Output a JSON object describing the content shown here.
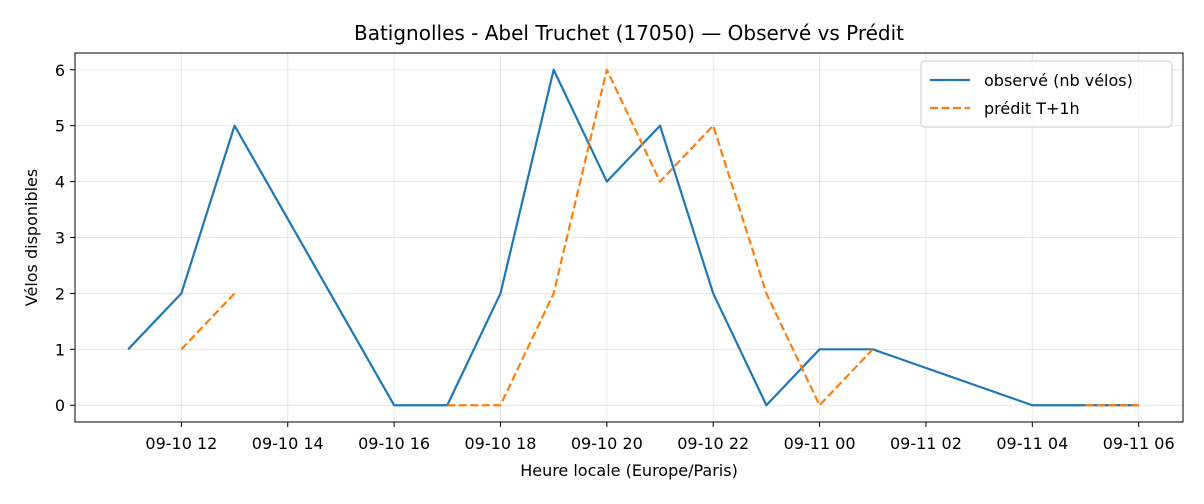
{
  "chart_data": {
    "type": "line",
    "title": "Batignolles - Abel Truchet (17050) — Observé vs Prédit",
    "xlabel": "Heure locale (Europe/Paris)",
    "ylabel": "Vélos disponibles",
    "x_ticks": [
      "09-10 12",
      "09-10 14",
      "09-10 16",
      "09-10 18",
      "09-10 20",
      "09-10 22",
      "09-11 00",
      "09-11 02",
      "09-11 04",
      "09-11 06"
    ],
    "y_ticks": [
      "0",
      "1",
      "2",
      "3",
      "4",
      "5",
      "6"
    ],
    "xlim": [
      "09-10 10:00",
      "09-11 06:50"
    ],
    "ylim": [
      -0.3,
      6.3
    ],
    "grid": true,
    "legend_position": "top-right",
    "series": [
      {
        "name": "observé (nb vélos)",
        "color": "#1f77b4",
        "style": "solid",
        "points": [
          {
            "x": "09-10 11:00",
            "y": 1
          },
          {
            "x": "09-10 12:00",
            "y": 2
          },
          {
            "x": "09-10 13:00",
            "y": 5
          },
          {
            "x": "09-10 16:00",
            "y": 0
          },
          {
            "x": "09-10 17:00",
            "y": 0
          },
          {
            "x": "09-10 18:00",
            "y": 2
          },
          {
            "x": "09-10 19:00",
            "y": 6
          },
          {
            "x": "09-10 20:00",
            "y": 4
          },
          {
            "x": "09-10 21:00",
            "y": 5
          },
          {
            "x": "09-10 22:00",
            "y": 2
          },
          {
            "x": "09-10 23:00",
            "y": 0
          },
          {
            "x": "09-11 00:00",
            "y": 1
          },
          {
            "x": "09-11 01:00",
            "y": 1
          },
          {
            "x": "09-11 04:00",
            "y": 0
          },
          {
            "x": "09-11 06:00",
            "y": 0
          }
        ]
      },
      {
        "name": "prédit T+1h",
        "color": "#ff7f0e",
        "style": "dashed",
        "segments": [
          [
            {
              "x": "09-10 12:00",
              "y": 1
            },
            {
              "x": "09-10 13:00",
              "y": 2
            }
          ],
          [
            {
              "x": "09-10 17:00",
              "y": 0
            },
            {
              "x": "09-10 18:00",
              "y": 0
            },
            {
              "x": "09-10 19:00",
              "y": 2
            },
            {
              "x": "09-10 20:00",
              "y": 6
            },
            {
              "x": "09-10 21:00",
              "y": 4
            },
            {
              "x": "09-10 22:00",
              "y": 5
            },
            {
              "x": "09-10 23:00",
              "y": 2
            },
            {
              "x": "09-11 00:00",
              "y": 0
            },
            {
              "x": "09-11 01:00",
              "y": 1
            }
          ],
          [
            {
              "x": "09-11 05:00",
              "y": 0
            },
            {
              "x": "09-11 06:00",
              "y": 0
            }
          ]
        ]
      }
    ]
  }
}
